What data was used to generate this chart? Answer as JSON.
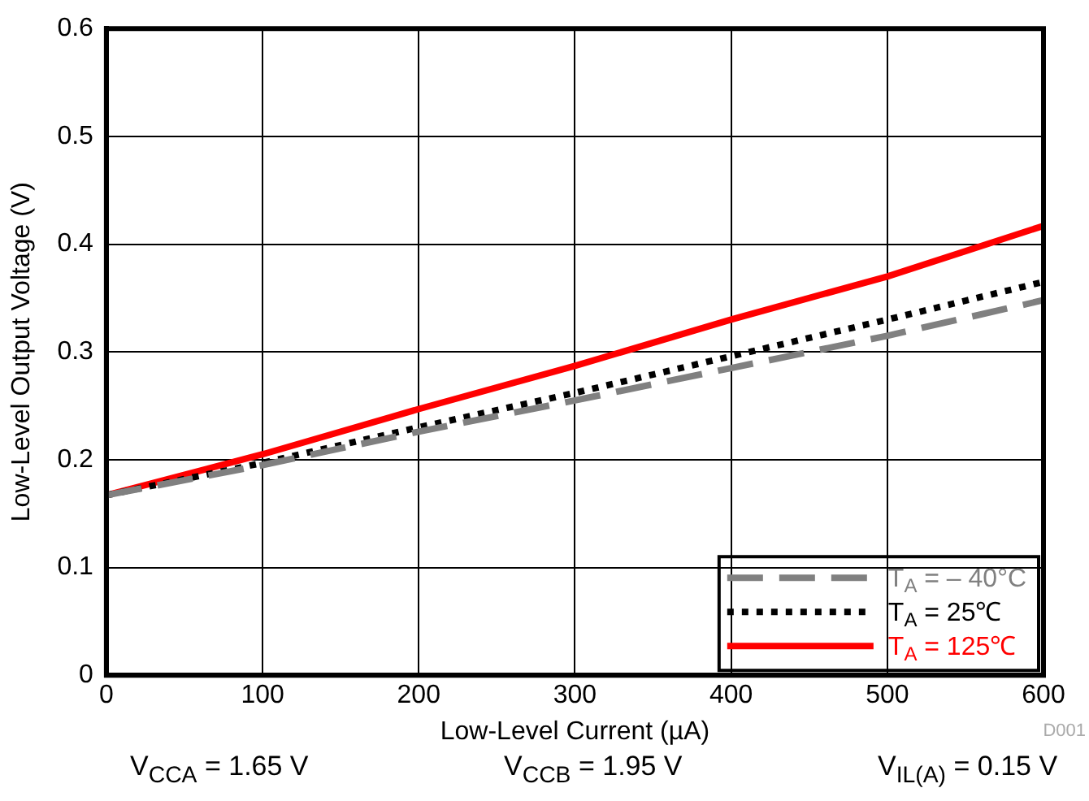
{
  "chart_data": {
    "type": "line",
    "xlabel": "Low-Level Current (µA)",
    "ylabel": "Low-Level Output Voltage (V)",
    "x": [
      0,
      100,
      200,
      300,
      400,
      500,
      600
    ],
    "series": [
      {
        "name": "T$_{A}$ = – 40°C",
        "color": "#808080",
        "line_style": "dashed",
        "values": [
          0.167,
          0.195,
          0.226,
          0.255,
          0.285,
          0.315,
          0.348
        ]
      },
      {
        "name": "T$_{A}$ = 25℃",
        "color": "#000000",
        "line_style": "dotted",
        "values": [
          0.167,
          0.197,
          0.23,
          0.262,
          0.296,
          0.33,
          0.365
        ]
      },
      {
        "name": "T$_{A}$ = 125℃",
        "color": "#ff0000",
        "line_style": "solid",
        "values": [
          0.167,
          0.205,
          0.247,
          0.287,
          0.33,
          0.37,
          0.417
        ]
      }
    ],
    "xlim": [
      0,
      600
    ],
    "xticks": [
      0,
      100,
      200,
      300,
      400,
      500,
      600
    ],
    "ylim": [
      0,
      0.6
    ],
    "yticks": [
      0,
      0.1,
      0.2,
      0.3,
      0.4,
      0.5,
      0.6
    ],
    "grid": true,
    "legend": "bottom right",
    "marker": "none",
    "annotations": [
      "D001",
      "V$_{CCA}$ = 1.65 V",
      "V$_{CCB}$ = 1.95 V",
      "V$_{IL(A)}$ = 0.15 V"
    ]
  }
}
